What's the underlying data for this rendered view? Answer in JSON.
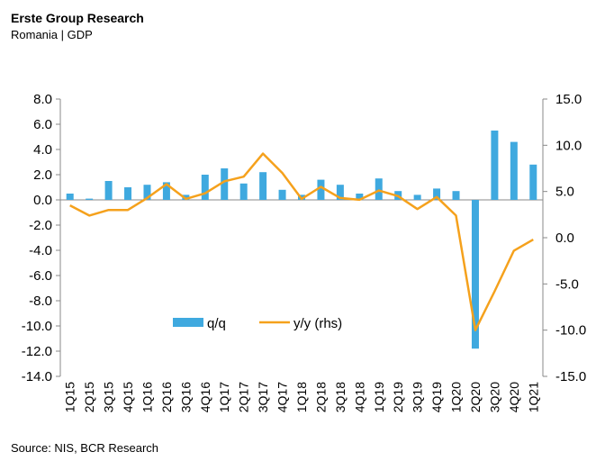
{
  "header": {
    "title": "Erste Group Research",
    "subtitle": "Romania | GDP"
  },
  "footer": {
    "source": "Source: NIS, BCR Research"
  },
  "chart_data": {
    "type": "bar+line",
    "categories": [
      "1Q15",
      "2Q15",
      "3Q15",
      "4Q15",
      "1Q16",
      "2Q16",
      "3Q16",
      "4Q16",
      "1Q17",
      "2Q17",
      "3Q17",
      "4Q17",
      "1Q18",
      "2Q18",
      "3Q18",
      "4Q18",
      "1Q19",
      "2Q19",
      "3Q19",
      "4Q19",
      "1Q20",
      "2Q20",
      "3Q20",
      "4Q20",
      "1Q21"
    ],
    "x_tick_labels": [
      "1Q15",
      "2Q15",
      "3Q15",
      "4Q15",
      "1Q16",
      "2Q16",
      "3Q16",
      "4Q16",
      "1Q17",
      "2Q17",
      "3Q17",
      "4Q17",
      "1Q18",
      "2Q18",
      "3Q18",
      "4Q18",
      "1Q19",
      "2Q19",
      "3Q19",
      "4Q19",
      "1Q20",
      "2Q20",
      "3Q20",
      "4Q20",
      "1Q21"
    ],
    "series": [
      {
        "name": "q/q",
        "type": "bar",
        "axis": "left",
        "color": "#3fa9df",
        "values": [
          0.5,
          0.1,
          1.5,
          1.0,
          1.2,
          1.4,
          0.4,
          2.0,
          2.5,
          1.3,
          2.2,
          0.8,
          0.4,
          1.6,
          1.2,
          0.5,
          1.7,
          0.7,
          0.4,
          0.9,
          0.7,
          -11.8,
          5.5,
          4.6,
          2.8
        ]
      },
      {
        "name": "y/y (rhs)",
        "type": "line",
        "axis": "right",
        "color": "#f5a11c",
        "values": [
          3.5,
          2.4,
          3.0,
          3.0,
          4.3,
          5.8,
          4.2,
          4.8,
          6.1,
          6.6,
          9.1,
          7.0,
          4.2,
          5.5,
          4.3,
          4.1,
          5.1,
          4.5,
          3.1,
          4.4,
          2.4,
          -10.0,
          -5.8,
          -1.4,
          -0.2
        ]
      }
    ],
    "y_left": {
      "ylim": [
        -14,
        8
      ],
      "ticks": [
        "8.0",
        "6.0",
        "4.0",
        "2.0",
        "0.0",
        "-2.0",
        "-4.0",
        "-6.0",
        "-8.0",
        "-10.0",
        "-12.0",
        "-14.0"
      ]
    },
    "y_right": {
      "ylim": [
        -15,
        15
      ],
      "ticks": [
        "15.0",
        "10.0",
        "5.0",
        "0.0",
        "-5.0",
        "-10.0",
        "-15.0"
      ]
    },
    "legend": {
      "position": "inside-bottom-center"
    },
    "grid": false
  }
}
